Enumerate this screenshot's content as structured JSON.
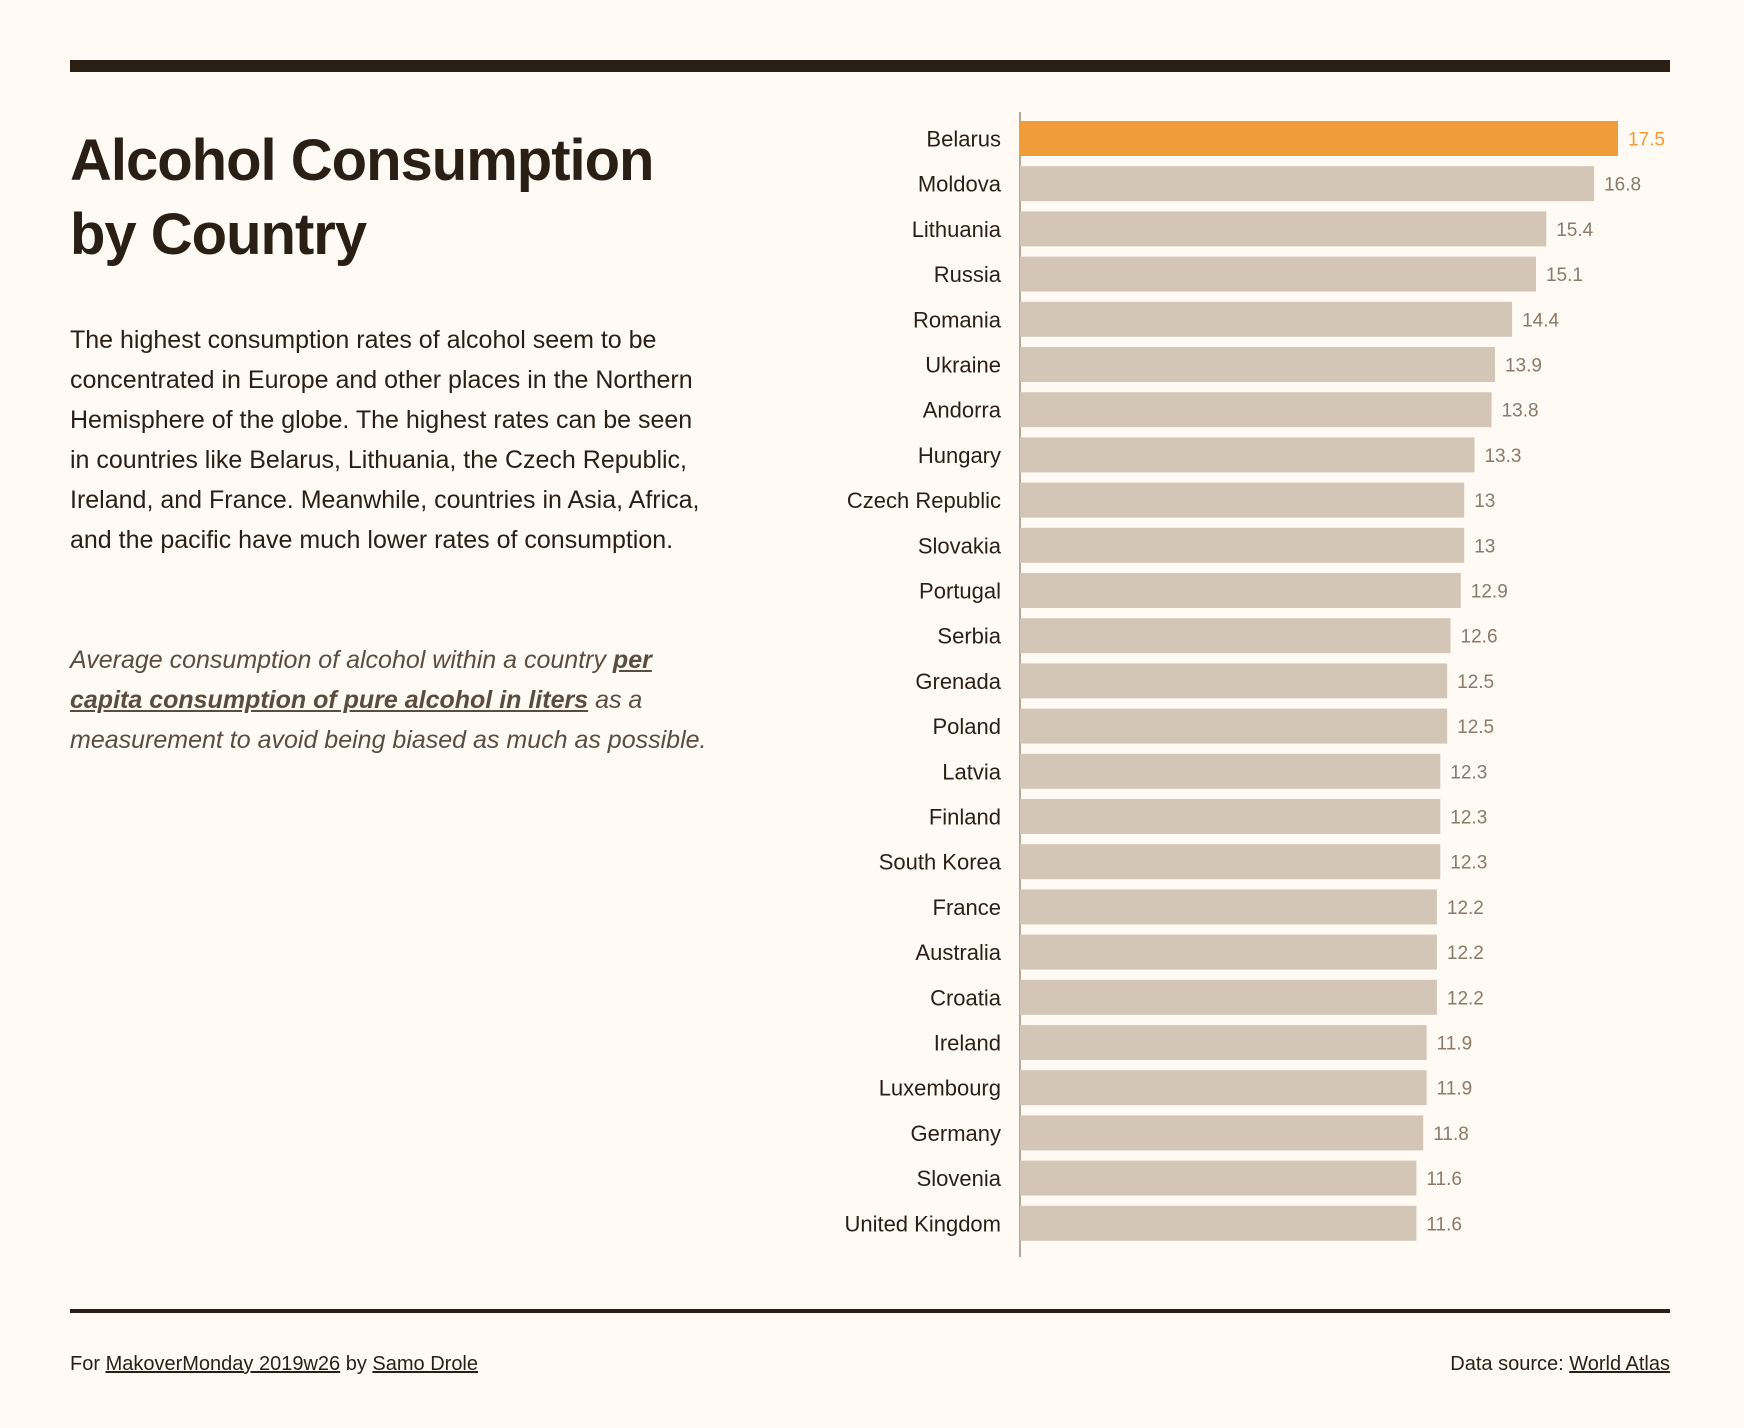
{
  "title": "Alcohol Consumption by Country",
  "description": "The highest consumption rates of alcohol seem to be concentrated in Europe and other places in the Northern Hemisphere of the globe. The highest rates can be seen in countries like Belarus, Lithuania, the Czech Republic, Ireland, and France. Meanwhile, countries in Asia, Africa, and the pacific have much lower rates of consumption.",
  "note": {
    "before": "Average consumption of alcohol within a country ",
    "link": "per capita consumption of pure alcohol in liters",
    "after": " as a measurement to avoid being biased as much as possible."
  },
  "footer": {
    "for_text": "For ",
    "makeover_link": "MakoverMonday 2019w26",
    "by_text": " by ",
    "author_link": "Samo Drole",
    "source_text": "Data source: ",
    "source_link": "World Atlas"
  },
  "colors": {
    "highlight": "#f09c38",
    "bar": "#d4c6b6",
    "text": "#2a1f14",
    "value_text": "#8a7a6a"
  },
  "chart_data": {
    "type": "bar",
    "orientation": "horizontal",
    "categories": [
      "Belarus",
      "Moldova",
      "Lithuania",
      "Russia",
      "Romania",
      "Ukraine",
      "Andorra",
      "Hungary",
      "Czech Republic",
      "Slovakia",
      "Portugal",
      "Serbia",
      "Grenada",
      "Poland",
      "Latvia",
      "Finland",
      "South Korea",
      "France",
      "Australia",
      "Croatia",
      "Ireland",
      "Luxembourg",
      "Germany",
      "Slovenia",
      "United Kingdom"
    ],
    "values": [
      17.5,
      16.8,
      15.4,
      15.1,
      14.4,
      13.9,
      13.8,
      13.3,
      13,
      13,
      12.9,
      12.6,
      12.5,
      12.5,
      12.3,
      12.3,
      12.3,
      12.2,
      12.2,
      12.2,
      11.9,
      11.9,
      11.8,
      11.6,
      11.6
    ],
    "value_labels": [
      "17.5",
      "16.8",
      "15.4",
      "15.1",
      "14.4",
      "13.9",
      "13.8",
      "13.3",
      "13",
      "13",
      "12.9",
      "12.6",
      "12.5",
      "12.5",
      "12.3",
      "12.3",
      "12.3",
      "12.2",
      "12.2",
      "12.2",
      "11.9",
      "11.9",
      "11.8",
      "11.6",
      "11.6"
    ],
    "highlight_category": "Belarus",
    "xlim": [
      0,
      17.5
    ],
    "grid": false,
    "title": "",
    "xlabel": "",
    "ylabel": ""
  }
}
